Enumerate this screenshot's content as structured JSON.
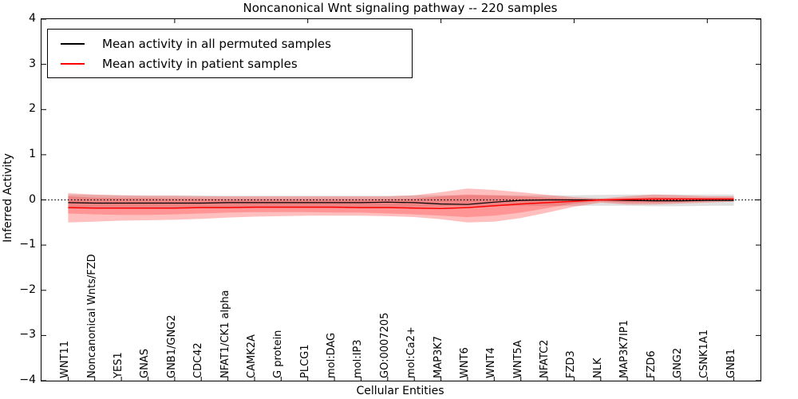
{
  "title": "Noncanonical Wnt signaling pathway -- 220 samples",
  "axes": {
    "ylabel": "Inferred Activity",
    "xlabel": "Cellular Entities"
  },
  "legend": {
    "items": [
      {
        "label": "Mean activity in all permuted samples",
        "color": "#000000"
      },
      {
        "label": "Mean activity in patient samples",
        "color": "#ff0000"
      }
    ],
    "position": "upper left"
  },
  "chart_data": {
    "type": "line",
    "title": "Noncanonical Wnt signaling pathway -- 220 samples",
    "xlabel": "Cellular Entities",
    "ylabel": "Inferred Activity",
    "ylim": [
      -4,
      4
    ],
    "xlim": [
      0,
      27
    ],
    "grid": false,
    "legend_position": "upper left",
    "yticks": [
      {
        "value": 4,
        "label": "4"
      },
      {
        "value": 3,
        "label": "3"
      },
      {
        "value": 2,
        "label": "2"
      },
      {
        "value": 1,
        "label": "1"
      },
      {
        "value": 0,
        "label": "0"
      },
      {
        "value": -1,
        "label": "−1"
      },
      {
        "value": -2,
        "label": "−2"
      },
      {
        "value": -3,
        "label": "−3"
      },
      {
        "value": -4,
        "label": "−4"
      }
    ],
    "top_tick_units": [
      5,
      10,
      15,
      20,
      25
    ],
    "categories": [
      "WNT11",
      "Noncanonical Wnts/FZD",
      "YES1",
      "GNAS",
      "GNB1/GNG2",
      "CDC42",
      "NFAT1/CK1 alpha",
      "CAMK2A",
      "G protein",
      "PLCG1",
      "mol:DAG",
      "mol:IP3",
      "GO:0007205",
      "mol:Ca2+",
      "MAP3K7",
      "WNT6",
      "WNT4",
      "WNT5A",
      "NFATC2",
      "FZD3",
      "NLK",
      "MAP3K7IP1",
      "FZD6",
      "GNG2",
      "CSNK1A1",
      "GNB1"
    ],
    "zero_line": {
      "y": 0,
      "style": "dotted",
      "color": "#000000"
    },
    "series": [
      {
        "name": "Mean activity in all permuted samples",
        "color": "#000000",
        "width": 1.2,
        "values": [
          -0.06,
          -0.07,
          -0.07,
          -0.07,
          -0.07,
          -0.07,
          -0.06,
          -0.06,
          -0.06,
          -0.06,
          -0.06,
          -0.06,
          -0.05,
          -0.06,
          -0.09,
          -0.1,
          -0.05,
          -0.01,
          0.0,
          0.0,
          0.0,
          -0.01,
          -0.02,
          -0.02,
          -0.01,
          -0.01
        ]
      },
      {
        "name": "Mean activity in patient samples",
        "color": "#ff0000",
        "width": 1.5,
        "values": [
          -0.17,
          -0.18,
          -0.18,
          -0.18,
          -0.18,
          -0.17,
          -0.17,
          -0.16,
          -0.16,
          -0.16,
          -0.16,
          -0.17,
          -0.17,
          -0.18,
          -0.19,
          -0.17,
          -0.13,
          -0.09,
          -0.06,
          -0.03,
          0.0,
          0.01,
          0.02,
          0.02,
          0.02,
          0.02
        ]
      }
    ],
    "bands": [
      {
        "name": "permuted-samples-range",
        "color": "rgba(0,0,0,0.12)",
        "upper": [
          0.12,
          0.11,
          0.1,
          0.1,
          0.1,
          0.1,
          0.09,
          0.09,
          0.09,
          0.09,
          0.09,
          0.09,
          0.09,
          0.1,
          0.1,
          0.1,
          0.1,
          0.1,
          0.1,
          0.1,
          0.11,
          0.12,
          0.12,
          0.12,
          0.12,
          0.12
        ],
        "lower": [
          -0.2,
          -0.19,
          -0.18,
          -0.18,
          -0.17,
          -0.17,
          -0.16,
          -0.16,
          -0.16,
          -0.16,
          -0.16,
          -0.16,
          -0.16,
          -0.16,
          -0.15,
          -0.14,
          -0.13,
          -0.13,
          -0.13,
          -0.13,
          -0.13,
          -0.13,
          -0.14,
          -0.14,
          -0.13,
          -0.13
        ]
      },
      {
        "name": "patient-samples-range-outer",
        "color": "rgba(255,0,0,0.25)",
        "upper": [
          0.15,
          0.12,
          0.1,
          0.09,
          0.09,
          0.08,
          0.08,
          0.08,
          0.08,
          0.08,
          0.08,
          0.08,
          0.08,
          0.1,
          0.17,
          0.25,
          0.22,
          0.17,
          0.11,
          0.06,
          0.03,
          0.08,
          0.12,
          0.1,
          0.08,
          0.08
        ],
        "lower": [
          -0.5,
          -0.48,
          -0.46,
          -0.45,
          -0.44,
          -0.42,
          -0.39,
          -0.37,
          -0.36,
          -0.35,
          -0.35,
          -0.35,
          -0.36,
          -0.38,
          -0.43,
          -0.5,
          -0.48,
          -0.4,
          -0.28,
          -0.15,
          -0.06,
          -0.1,
          -0.1,
          -0.08,
          -0.06,
          -0.04
        ]
      },
      {
        "name": "patient-samples-range-inner",
        "color": "rgba(255,0,0,0.22)",
        "upper": [
          0.08,
          0.05,
          0.04,
          0.04,
          0.03,
          0.03,
          0.02,
          0.02,
          0.02,
          0.02,
          0.02,
          0.02,
          0.02,
          0.03,
          0.08,
          0.12,
          0.1,
          0.08,
          0.05,
          0.02,
          0.02,
          0.04,
          0.06,
          0.05,
          0.04,
          0.04
        ],
        "lower": [
          -0.3,
          -0.32,
          -0.33,
          -0.33,
          -0.32,
          -0.3,
          -0.28,
          -0.27,
          -0.27,
          -0.27,
          -0.28,
          -0.28,
          -0.3,
          -0.32,
          -0.35,
          -0.38,
          -0.35,
          -0.28,
          -0.18,
          -0.08,
          -0.03,
          -0.06,
          -0.06,
          -0.05,
          -0.03,
          -0.02
        ]
      }
    ]
  }
}
